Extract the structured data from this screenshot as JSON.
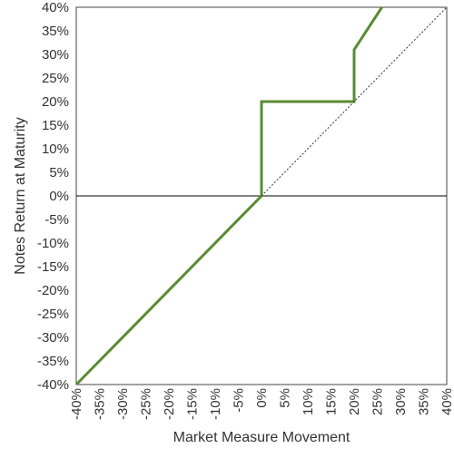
{
  "chart_data": {
    "type": "line",
    "title": "",
    "xlabel": "Market Measure Movement",
    "ylabel": "Notes Return at Maturity",
    "xlim": [
      -40,
      40
    ],
    "ylim": [
      -40,
      40
    ],
    "x_tick_labels": [
      "-40%",
      "-35%",
      "-30%",
      "-25%",
      "-20%",
      "-15%",
      "-10%",
      "-5%",
      "0%",
      "5%",
      "10%",
      "15%",
      "20%",
      "25%",
      "30%",
      "35%",
      "40%"
    ],
    "y_tick_labels": [
      "40%",
      "35%",
      "30%",
      "25%",
      "20%",
      "15%",
      "10%",
      "5%",
      "0%",
      "-5%",
      "-10%",
      "-15%",
      "-20%",
      "-25%",
      "-30%",
      "-35%",
      "-40%"
    ],
    "grid": false,
    "series": [
      {
        "style": "solid",
        "color": "#5a8a32",
        "points": [
          {
            "x": -40,
            "y": -40
          },
          {
            "x": 0,
            "y": 0
          },
          {
            "x": 0,
            "y": 20
          },
          {
            "x": 20,
            "y": 20
          },
          {
            "x": 20,
            "y": 31
          },
          {
            "x": 26,
            "y": 40
          }
        ]
      },
      {
        "style": "dotted",
        "color": "#333333",
        "points": [
          {
            "x": 0,
            "y": 0
          },
          {
            "x": 40,
            "y": 40
          }
        ]
      }
    ],
    "reference_lines": [
      {
        "axis": "y",
        "value": 0,
        "color": "#000000"
      }
    ]
  }
}
